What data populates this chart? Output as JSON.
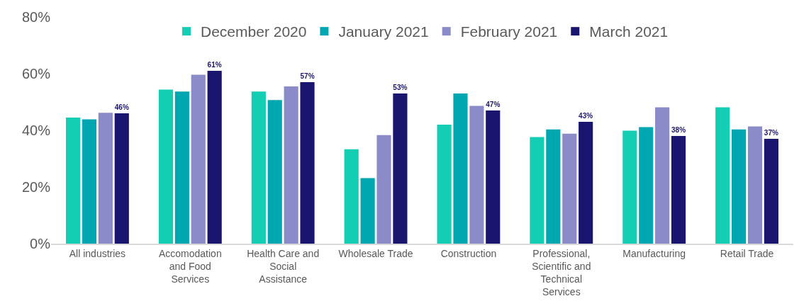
{
  "chart_data": {
    "type": "bar",
    "categories": [
      "All industries",
      "Accomodation and Food Services",
      "Health Care and Social Assistance",
      "Wholesale Trade",
      "Construction",
      "Professional, Scientific and Technical Services",
      "Manufacturing",
      "Retail Trade"
    ],
    "series": [
      {
        "name": "December 2020",
        "color": "#14ceb4",
        "values": [
          44.5,
          54.4,
          53.7,
          33.3,
          42,
          37.6,
          39.9,
          48.1
        ]
      },
      {
        "name": "January 2021",
        "color": "#00a6b0",
        "values": [
          43.9,
          53.7,
          50.7,
          23.1,
          53,
          40.3,
          41.1,
          40.3
        ]
      },
      {
        "name": "February 2021",
        "color": "#8c8bc9",
        "values": [
          46.2,
          59.6,
          55.5,
          38.3,
          48.6,
          38.8,
          48.1,
          41.4
        ]
      },
      {
        "name": "March 2021",
        "color": "#1a1670",
        "values": [
          46,
          61,
          57,
          53,
          47,
          43,
          38,
          37
        ],
        "value_labels": [
          "46%",
          "61%",
          "57%",
          "53%",
          "47%",
          "43%",
          "38%",
          "37%"
        ]
      }
    ],
    "ylim": [
      0,
      80
    ],
    "yticks": [
      {
        "value": 0,
        "label": "0%"
      },
      {
        "value": 20,
        "label": "20%"
      },
      {
        "value": 40,
        "label": "40%"
      },
      {
        "value": 60,
        "label": "60%"
      },
      {
        "value": 80,
        "label": "80%"
      }
    ],
    "grid": false,
    "legend": "top"
  }
}
